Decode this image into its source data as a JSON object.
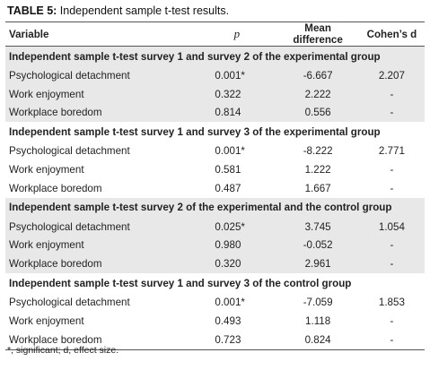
{
  "caption": {
    "label": "TABLE 5:",
    "text": " Independent sample t-test results."
  },
  "headers": {
    "variable": "Variable",
    "p": "p",
    "mean_difference": "Mean difference",
    "cohens_d": "Cohen’s d"
  },
  "groups": [
    {
      "title": "Independent sample t-test survey 1 and survey 2 of the experimental group",
      "rows": [
        {
          "variable": "Psychological detachment",
          "p": "0.001*",
          "md": "-6.667",
          "d": "2.207"
        },
        {
          "variable": "Work enjoyment",
          "p": "0.322",
          "md": "2.222",
          "d": "-"
        },
        {
          "variable": "Workplace boredom",
          "p": "0.814",
          "md": "0.556",
          "d": "-"
        }
      ]
    },
    {
      "title": "Independent sample t-test survey 1 and survey 3 of the experimental group",
      "rows": [
        {
          "variable": "Psychological detachment",
          "p": "0.001*",
          "md": "-8.222",
          "d": "2.771"
        },
        {
          "variable": "Work enjoyment",
          "p": "0.581",
          "md": "1.222",
          "d": "-"
        },
        {
          "variable": "Workplace boredom",
          "p": "0.487",
          "md": "1.667",
          "d": "-"
        }
      ]
    },
    {
      "title": "Independent sample t-test survey 2 of the experimental and the control group",
      "rows": [
        {
          "variable": "Psychological detachment",
          "p": "0.025*",
          "md": "3.745",
          "d": "1.054"
        },
        {
          "variable": "Work enjoyment",
          "p": "0.980",
          "md": "-0.052",
          "d": "-"
        },
        {
          "variable": "Workplace boredom",
          "p": "0.320",
          "md": "2.961",
          "d": "-"
        }
      ]
    },
    {
      "title": "Independent sample t-test survey 1 and survey 3 of the control group",
      "rows": [
        {
          "variable": "Psychological detachment",
          "p": "0.001*",
          "md": "-7.059",
          "d": "1.853"
        },
        {
          "variable": "Work enjoyment",
          "p": "0.493",
          "md": "1.118",
          "d": "-"
        },
        {
          "variable": "Workplace boredom",
          "p": "0.723",
          "md": "0.824",
          "d": "-"
        }
      ]
    }
  ],
  "footnote": "*, significant; d, effect size."
}
